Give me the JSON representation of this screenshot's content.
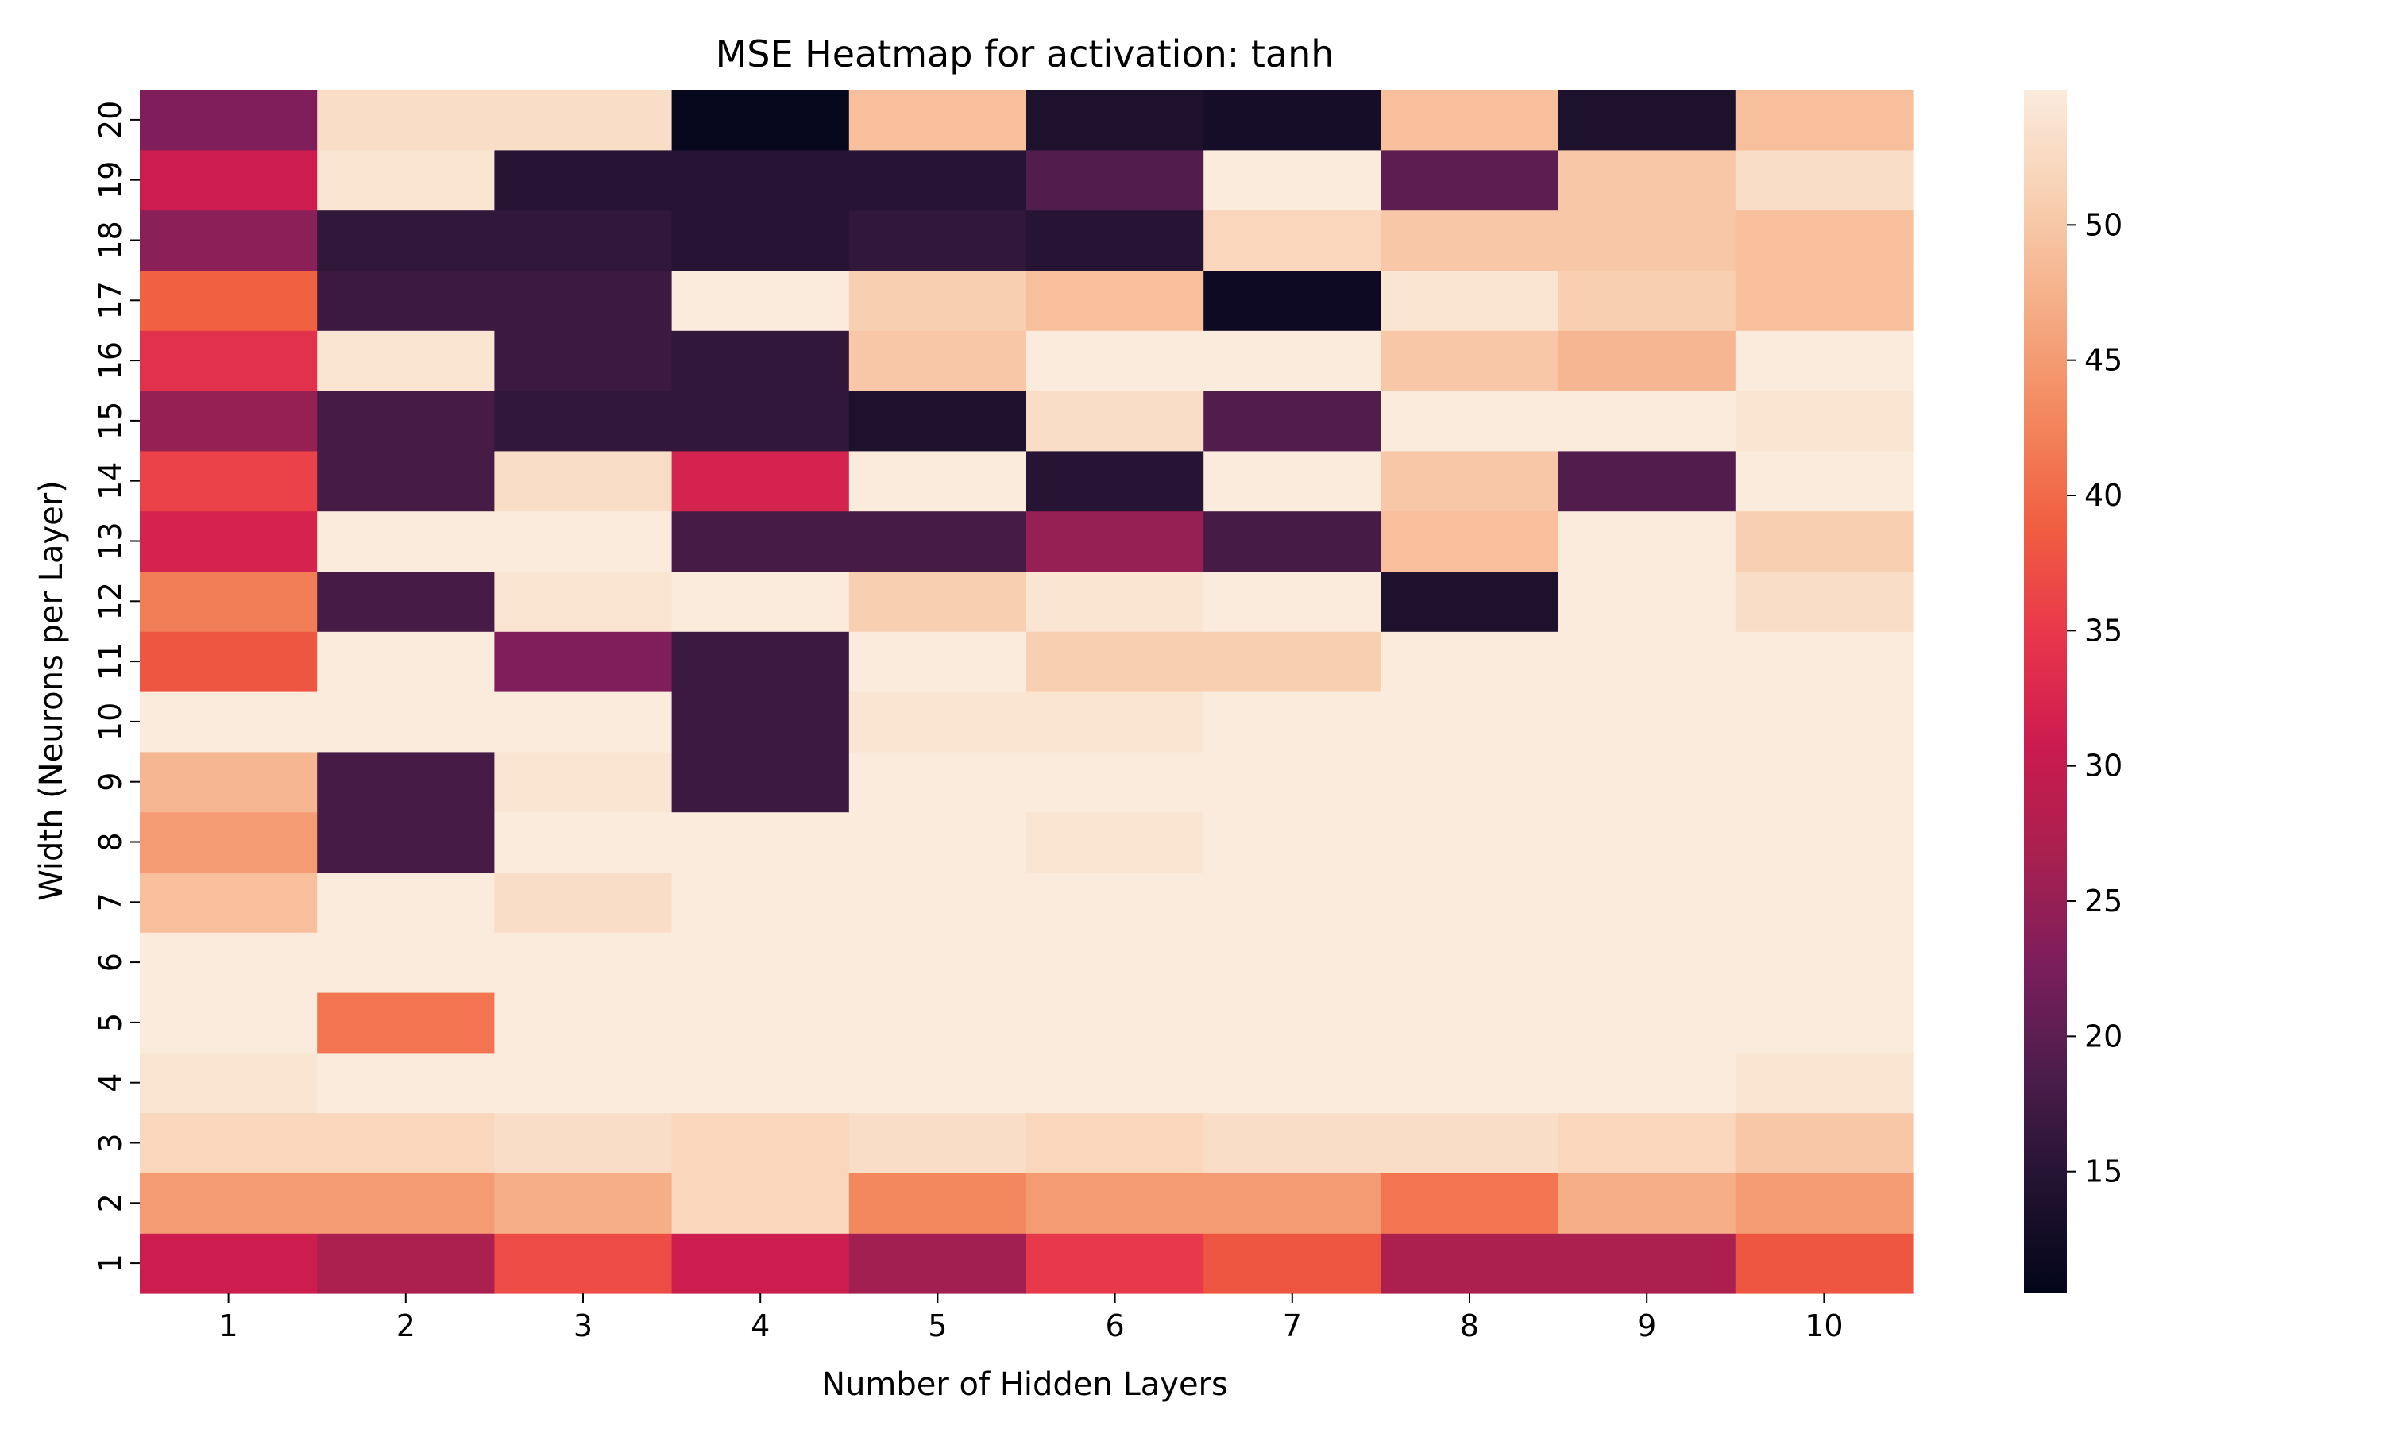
{
  "chart_data": {
    "type": "heatmap",
    "title": "MSE Heatmap for activation: tanh",
    "xlabel": "Number of Hidden Layers",
    "ylabel": "Width (Neurons per Layer)",
    "x_categories": [
      "1",
      "2",
      "3",
      "4",
      "5",
      "6",
      "7",
      "8",
      "9",
      "10"
    ],
    "y_categories": [
      "1",
      "2",
      "3",
      "4",
      "5",
      "6",
      "7",
      "8",
      "9",
      "10",
      "11",
      "12",
      "13",
      "14",
      "15",
      "16",
      "17",
      "18",
      "19",
      "20"
    ],
    "values": [
      [
        31,
        27,
        37,
        31,
        26,
        35,
        38,
        27,
        27,
        38
      ],
      [
        45,
        45,
        47,
        52,
        43,
        45,
        45,
        41,
        47,
        45
      ],
      [
        52,
        52,
        53,
        52,
        53,
        52,
        53,
        53,
        52,
        50
      ],
      [
        54,
        55,
        55,
        56,
        55,
        55,
        55,
        55,
        55,
        54
      ],
      [
        55,
        41,
        55,
        56,
        55,
        55,
        55,
        55,
        55,
        55
      ],
      [
        55,
        55,
        55,
        55,
        55,
        55,
        55,
        55,
        55,
        55
      ],
      [
        49,
        55,
        53,
        55,
        55,
        55,
        55,
        56,
        55,
        55
      ],
      [
        45,
        18,
        55,
        55,
        55,
        54,
        55,
        55,
        55,
        55
      ],
      [
        48,
        18,
        54,
        17,
        55,
        56,
        55,
        56,
        55,
        55
      ],
      [
        55,
        55,
        55,
        17,
        54,
        54,
        55,
        55,
        55,
        55
      ],
      [
        38,
        55,
        23,
        17,
        55,
        51,
        51,
        55,
        55,
        55
      ],
      [
        42,
        18,
        54,
        56,
        51,
        54,
        55,
        14,
        55,
        53
      ],
      [
        32,
        55,
        55,
        18,
        18,
        25,
        18,
        49,
        55,
        51
      ],
      [
        36,
        18,
        53,
        32,
        55,
        15,
        55,
        50,
        19,
        55
      ],
      [
        25,
        18,
        16,
        16,
        14,
        53,
        19,
        55,
        55,
        54
      ],
      [
        34,
        54,
        17,
        16,
        50,
        55,
        55,
        50,
        48,
        55
      ],
      [
        39,
        17,
        17,
        55,
        51,
        49,
        12,
        54,
        51,
        49
      ],
      [
        24,
        16,
        16,
        15,
        16,
        15,
        52,
        50,
        50,
        49
      ],
      [
        31,
        54,
        15,
        15,
        15,
        19,
        55,
        20,
        50,
        53
      ],
      [
        23,
        53,
        53,
        11,
        49,
        14,
        13,
        49,
        14,
        49
      ]
    ],
    "vmin": 10.5,
    "vmax": 55,
    "colorbar_ticks": [
      "15",
      "20",
      "25",
      "30",
      "35",
      "40",
      "45",
      "50"
    ],
    "colormap_stops": [
      "#03051a",
      "#221331",
      "#4c1d4b",
      "#7c1e5c",
      "#a8204f",
      "#cb1b4f",
      "#e8364c",
      "#f05e40",
      "#f3875e",
      "#f5ad85",
      "#f8cfb1",
      "#faebdd"
    ]
  }
}
